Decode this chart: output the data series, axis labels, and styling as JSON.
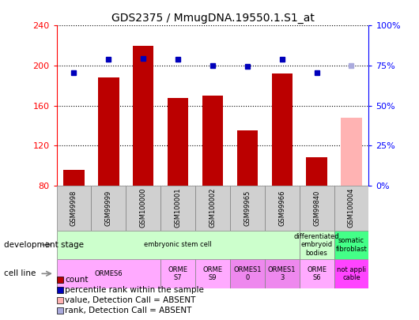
{
  "title": "GDS2375 / MmugDNA.19550.1.S1_at",
  "samples": [
    "GSM99998",
    "GSM99999",
    "GSM100000",
    "GSM100001",
    "GSM100002",
    "GSM99965",
    "GSM99966",
    "GSM99840",
    "GSM100004"
  ],
  "count_values": [
    96,
    188,
    220,
    168,
    170,
    135,
    192,
    108,
    null
  ],
  "count_absent": [
    null,
    null,
    null,
    null,
    null,
    null,
    null,
    null,
    148
  ],
  "percentile_values": [
    193,
    206,
    207,
    206,
    200,
    199,
    206,
    193,
    null
  ],
  "percentile_absent": [
    null,
    null,
    null,
    null,
    null,
    null,
    null,
    null,
    200
  ],
  "ylim_left": [
    80,
    240
  ],
  "ylim_right": [
    0,
    100
  ],
  "yticks_left": [
    80,
    120,
    160,
    200,
    240
  ],
  "yticks_right": [
    0,
    25,
    50,
    75,
    100
  ],
  "bar_color": "#bb0000",
  "bar_absent_color": "#ffb3b3",
  "dot_color": "#0000bb",
  "dot_absent_color": "#aaaadd",
  "dev_stage_groups": [
    {
      "label": "embryonic stem cell",
      "span": [
        0,
        7
      ],
      "color": "#ccffcc"
    },
    {
      "label": "differentiated\nembryoid\nbodies",
      "span": [
        7,
        8
      ],
      "color": "#ccffcc"
    },
    {
      "label": "somatic\nfibroblast",
      "span": [
        8,
        9
      ],
      "color": "#44ff88"
    }
  ],
  "cell_line_groups": [
    {
      "label": "ORMES6",
      "span": [
        0,
        3
      ],
      "color": "#ffaaff"
    },
    {
      "label": "ORME\nS7",
      "span": [
        3,
        4
      ],
      "color": "#ffaaff"
    },
    {
      "label": "ORME\nS9",
      "span": [
        4,
        5
      ],
      "color": "#ffaaff"
    },
    {
      "label": "ORMES1\n0",
      "span": [
        5,
        6
      ],
      "color": "#ee88ee"
    },
    {
      "label": "ORMES1\n3",
      "span": [
        6,
        7
      ],
      "color": "#ee88ee"
    },
    {
      "label": "ORME\nS6",
      "span": [
        7,
        8
      ],
      "color": "#ffaaff"
    },
    {
      "label": "not appli\ncable",
      "span": [
        8,
        9
      ],
      "color": "#ff44ff"
    }
  ],
  "legend_items": [
    {
      "label": "count",
      "color": "#bb0000"
    },
    {
      "label": "percentile rank within the sample",
      "color": "#0000bb"
    },
    {
      "label": "value, Detection Call = ABSENT",
      "color": "#ffb3b3"
    },
    {
      "label": "rank, Detection Call = ABSENT",
      "color": "#aaaadd"
    }
  ]
}
